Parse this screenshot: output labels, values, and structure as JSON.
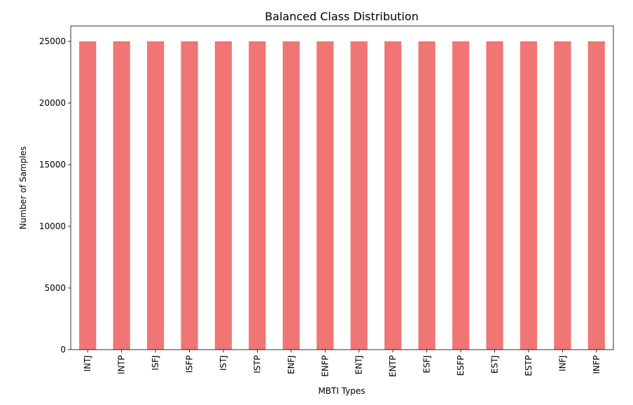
{
  "chart_data": {
    "type": "bar",
    "title": "Balanced Class Distribution",
    "xlabel": "MBTI Types",
    "ylabel": "Number of Samples",
    "categories": [
      "INTJ",
      "INTP",
      "ISFJ",
      "ISFP",
      "ISTJ",
      "ISTP",
      "ENFJ",
      "ENFP",
      "ENTJ",
      "ENTP",
      "ESFJ",
      "ESFP",
      "ESTJ",
      "ESTP",
      "INFJ",
      "INFP"
    ],
    "values": [
      25000,
      25000,
      25000,
      25000,
      25000,
      25000,
      25000,
      25000,
      25000,
      25000,
      25000,
      25000,
      25000,
      25000,
      25000,
      25000
    ],
    "ylim": [
      0,
      26250
    ],
    "yticks": [
      0,
      5000,
      10000,
      15000,
      20000,
      25000
    ],
    "grid": false,
    "legend": "none",
    "bar_color": "#f07575"
  }
}
